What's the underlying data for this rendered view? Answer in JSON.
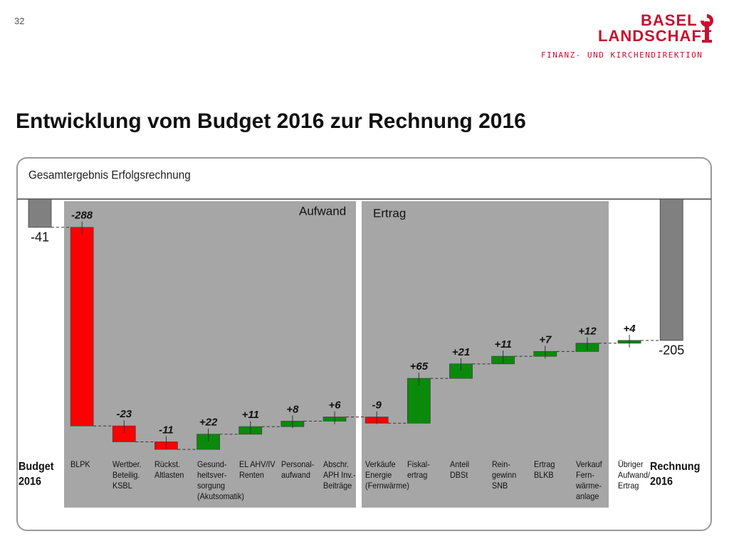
{
  "page_number": "32",
  "logo": {
    "line1": "BASEL",
    "line2": "LANDSCHAFT",
    "department": "FINANZ- UND KIRCHENDIREKTION"
  },
  "title": "Entwicklung vom Budget 2016 zur Rechnung 2016",
  "chart_data": {
    "type": "waterfall",
    "title": "Gesamtergebnis  Erfolgsrechnung",
    "sections": [
      "Aufwand",
      "Ertrag"
    ],
    "categories": [
      "Budget\n2016",
      "BLPK",
      "Wertber.\nBeteilig.\nKSBL",
      "Rückst.\nAltlasten",
      "Gesund-\nheitsver-\nsorgung\n(Akutsomatik)",
      "EL AHV/IV\nRenten",
      "Personal-\naufwand",
      "Abschr.\nAPH Inv.-\nBeiträge",
      "Verkäufe\nEnergie\n(Fernwärme)",
      "Fiskal-\nertrag",
      "Anteil\nDBSt",
      "Rein-\ngewinn\nSNB",
      "Ertrag\nBLKB",
      "Verkauf\nFern-\nwärme-\nanlage",
      "Übriger\nAufwand/\nErtrag",
      "Rechnung\n2016"
    ],
    "values": [
      -41,
      -288,
      -23,
      -11,
      22,
      11,
      8,
      6,
      -9,
      65,
      21,
      11,
      7,
      12,
      4,
      -205
    ],
    "value_labels": [
      "-41",
      "-288",
      "-23",
      "-11",
      "+22",
      "+11",
      "+8",
      "+6",
      "-9",
      "+65",
      "+21",
      "+11",
      "+7",
      "+12",
      "+4",
      "-205"
    ],
    "total_color": "#808080",
    "increase_color": "#0a8a0a",
    "decrease_color": "#ff0000"
  }
}
